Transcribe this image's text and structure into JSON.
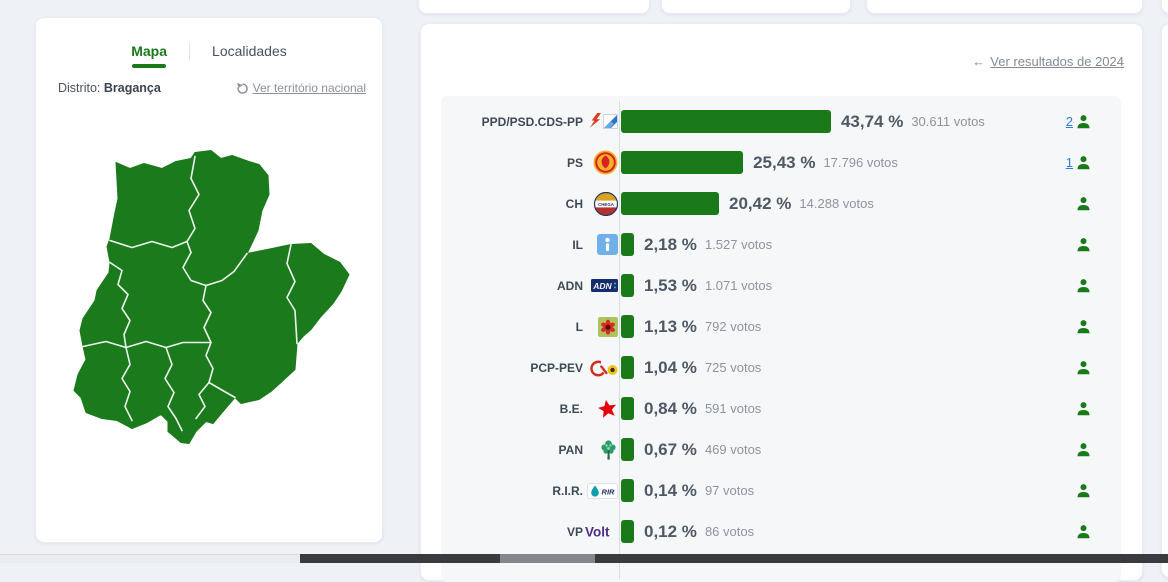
{
  "theme": {
    "accent_green": "#1a7a1a",
    "bar_green": "#1a7a1a",
    "link_blue": "#2f7cd4",
    "gray_link": "#8a919b"
  },
  "left_panel": {
    "tabs": [
      {
        "label": "Mapa",
        "active": true
      },
      {
        "label": "Localidades",
        "active": false
      }
    ],
    "district_label": "Distrito:",
    "district_name": "Bragança",
    "reset_link": "Ver território nacional",
    "map_region": "Bragança"
  },
  "right_panel": {
    "back_link": "Ver resultados de 2024"
  },
  "chart_data": {
    "type": "bar",
    "orientation": "horizontal",
    "value_unit": "percent",
    "xlim": [
      0,
      45
    ],
    "grid": false,
    "categories": [
      "PPD/PSD.CDS-PP",
      "PS",
      "CH",
      "IL",
      "ADN",
      "L",
      "PCP-PEV",
      "B.E.",
      "PAN",
      "R.I.R.",
      "VP"
    ],
    "values": [
      43.74,
      25.43,
      20.42,
      2.18,
      1.53,
      1.13,
      1.04,
      0.84,
      0.67,
      0.14,
      0.12
    ],
    "votes": [
      30611,
      17796,
      14288,
      1527,
      1071,
      792,
      725,
      591,
      469,
      97,
      86
    ],
    "elected": [
      2,
      1,
      null,
      null,
      null,
      null,
      null,
      null,
      null,
      null,
      null
    ],
    "rows": [
      {
        "party": "PPD/PSD.CDS-PP",
        "value": 43.74,
        "pct_label": "43,74 %",
        "votes_label": "30.611 votos",
        "elected": "2",
        "icons": [
          "psd-arrow",
          "cds-pp"
        ]
      },
      {
        "party": "PS",
        "value": 25.43,
        "pct_label": "25,43 %",
        "votes_label": "17.796 votos",
        "elected": "1",
        "icons": [
          "ps-fist-rose"
        ]
      },
      {
        "party": "CH",
        "value": 20.42,
        "pct_label": "20,42 %",
        "votes_label": "14.288 votos",
        "icons": [
          "chega-seal"
        ]
      },
      {
        "party": "IL",
        "value": 2.18,
        "pct_label": "2,18 %",
        "votes_label": "1.527 votos",
        "icons": [
          "il-exclamation"
        ]
      },
      {
        "party": "ADN",
        "value": 1.53,
        "pct_label": "1,53 %",
        "votes_label": "1.071 votos",
        "icons": [
          "adn-wordmark"
        ]
      },
      {
        "party": "L",
        "value": 1.13,
        "pct_label": "1,13 %",
        "votes_label": "792 votos",
        "icons": [
          "livre-flower"
        ]
      },
      {
        "party": "PCP-PEV",
        "value": 1.04,
        "pct_label": "1,04 %",
        "votes_label": "725 votos",
        "icons": [
          "pcp-pev-sickle-sunflower"
        ]
      },
      {
        "party": "B.E.",
        "value": 0.84,
        "pct_label": "0,84 %",
        "votes_label": "591 votos",
        "icons": [
          "be-star"
        ]
      },
      {
        "party": "PAN",
        "value": 0.67,
        "pct_label": "0,67 %",
        "votes_label": "469 votos",
        "icons": [
          "pan-tree"
        ]
      },
      {
        "party": "R.I.R.",
        "value": 0.14,
        "pct_label": "0,14 %",
        "votes_label": "97 votos",
        "icons": [
          "rir-drop"
        ]
      },
      {
        "party": "VP",
        "value": 0.12,
        "pct_label": "0,12 %",
        "votes_label": "86 votos",
        "icons": [
          "volt-wordmark"
        ]
      }
    ]
  }
}
